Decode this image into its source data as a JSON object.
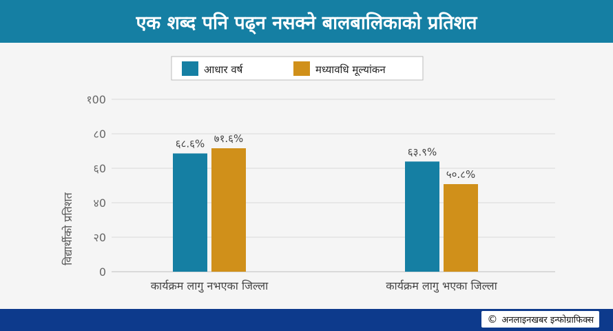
{
  "header": {
    "title": "एक शब्द पनि पढ्न नसक्ने बालबालिकाको प्रतिशत"
  },
  "footer": {
    "copyright_symbol": "©",
    "credit": "अनलाइनखबर इन्फोग्राफिक्स"
  },
  "colors": {
    "header_bg": "#157fa3",
    "footer_bg": "#0d3a8c",
    "series_baseline": "#157fa3",
    "series_midterm": "#d0901a"
  },
  "chart_data": {
    "type": "bar",
    "title": "एक शब्द पनि पढ्न नसक्ने बालबालिकाको प्रतिशत",
    "xlabel": "",
    "ylabel": "विद्यार्थीको प्रतिशत",
    "ylim": [
      0,
      100
    ],
    "yticks": [
      0,
      20,
      40,
      60,
      80,
      100
    ],
    "ytick_labels": [
      "0",
      "२0",
      "४0",
      "६0",
      "८0",
      "१00"
    ],
    "categories": [
      "कार्यक्रम लागु नभएका जिल्ला",
      "कार्यक्रम लागु भएका जिल्ला"
    ],
    "series": [
      {
        "name": "आधार वर्ष",
        "color": "#157fa3",
        "values": [
          68.6,
          63.9
        ],
        "labels": [
          "६८.६%",
          "६३.९%"
        ]
      },
      {
        "name": "मध्यावधि मूल्यांकन",
        "color": "#d0901a",
        "values": [
          71.6,
          50.8
        ],
        "labels": [
          "७१.६%",
          "५०.८%"
        ]
      }
    ],
    "grid": true,
    "legend_position": "top-center"
  }
}
